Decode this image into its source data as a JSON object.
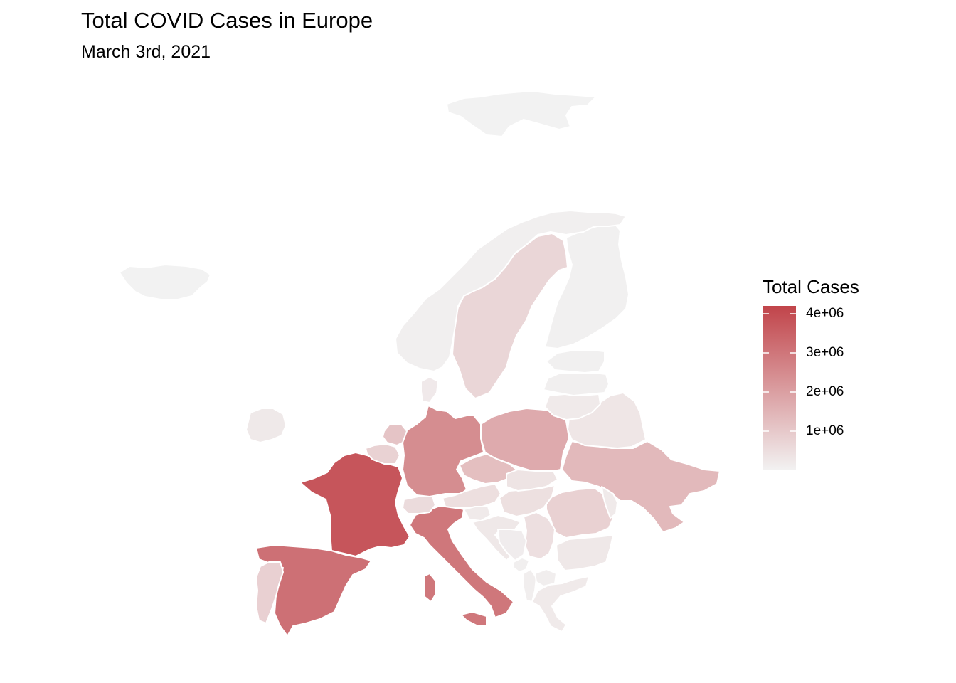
{
  "title": "Total COVID Cases in Europe",
  "subtitle": "March 3rd, 2021",
  "legend": {
    "title": "Total Cases",
    "min": 0,
    "max": 4200000,
    "low_color": "#F2F2F2",
    "high_color": "#C1444A",
    "ticks": [
      {
        "value": 4000000,
        "label": "4e+06"
      },
      {
        "value": 3000000,
        "label": "3e+06"
      },
      {
        "value": 2000000,
        "label": "2e+06"
      },
      {
        "value": 1000000,
        "label": "1e+06"
      }
    ]
  },
  "chart_data": {
    "type": "choropleth",
    "countries": [
      {
        "name": "France",
        "value": 3780000
      },
      {
        "name": "Italy",
        "value": 2980000
      },
      {
        "name": "Spain",
        "value": 3130000
      },
      {
        "name": "Germany",
        "value": 2450000
      },
      {
        "name": "Poland",
        "value": 1730000
      },
      {
        "name": "Ukraine",
        "value": 1380000
      },
      {
        "name": "Czechia",
        "value": 1240000
      },
      {
        "name": "Netherlands",
        "value": 1110000
      },
      {
        "name": "Romania",
        "value": 800000
      },
      {
        "name": "Portugal",
        "value": 810000
      },
      {
        "name": "Sweden",
        "value": 680000
      },
      {
        "name": "Belgium",
        "value": 780000
      },
      {
        "name": "Serbia",
        "value": 450000
      },
      {
        "name": "Hungary",
        "value": 440000
      },
      {
        "name": "Switzerland",
        "value": 560000
      },
      {
        "name": "Austria",
        "value": 470000
      },
      {
        "name": "Slovakia",
        "value": 340000
      },
      {
        "name": "Ireland",
        "value": 220000
      },
      {
        "name": "Belarus",
        "value": 300000
      },
      {
        "name": "Bulgaria",
        "value": 240000
      },
      {
        "name": "Lithuania",
        "value": 200000
      },
      {
        "name": "Greece",
        "value": 190000
      },
      {
        "name": "Denmark",
        "value": 210000
      },
      {
        "name": "Croatia",
        "value": 245000
      },
      {
        "name": "Slovenia",
        "value": 190000
      },
      {
        "name": "Bosnia and Herzegovina",
        "value": 135000
      },
      {
        "name": "Moldova",
        "value": 190000
      },
      {
        "name": "Latvia",
        "value": 80000
      },
      {
        "name": "Estonia",
        "value": 60000
      },
      {
        "name": "Finland",
        "value": 59000
      },
      {
        "name": "Norway",
        "value": 70000
      },
      {
        "name": "Iceland",
        "value": 6000
      },
      {
        "name": "Albania",
        "value": 108000
      },
      {
        "name": "North Macedonia",
        "value": 105000
      },
      {
        "name": "Montenegro",
        "value": 80000
      },
      {
        "name": "Svalbard",
        "value": 0
      }
    ]
  }
}
